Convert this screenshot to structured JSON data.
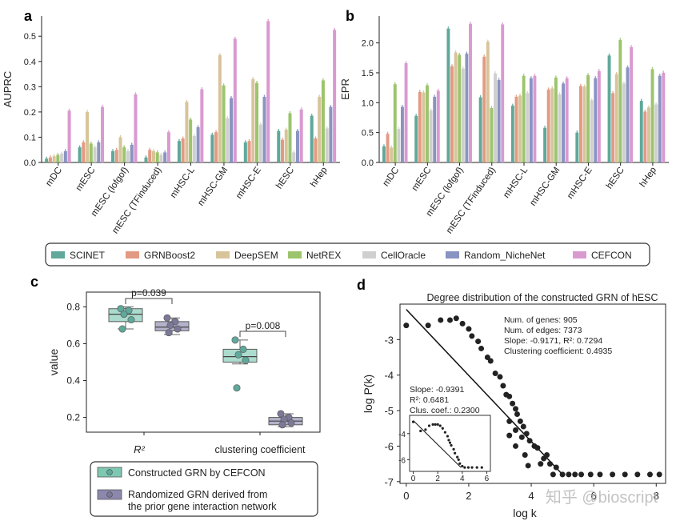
{
  "colors": {
    "SCINET": "#5fa89a",
    "GRNBoost2": "#e39a83",
    "DeepSEM": "#d8c49a",
    "NetREX": "#9cc46c",
    "CellOracle": "#cfcfcf",
    "Random_NicheNet": "#8a94c2",
    "CEFCON": "#d99ad0",
    "constructed": "#7ec8b2",
    "randomized": "#8c88ad",
    "point_constructed": "#5fa89a",
    "point_randomized": "#7c7898",
    "axis": "#222222"
  },
  "watermark": "知乎 @bioscript",
  "legend_ab": {
    "items": [
      "SCINET",
      "GRNBoost2",
      "DeepSEM",
      "NetREX",
      "CellOracle",
      "Random_NicheNet",
      "CEFCON"
    ]
  },
  "chart_data": [
    {
      "panel": "a",
      "type": "bar",
      "ylabel": "AUPRC",
      "ylim": [
        0,
        0.58
      ],
      "yticks": [
        "0.0",
        "0.1",
        "0.2",
        "0.3",
        "0.4",
        "0.5"
      ],
      "categories": [
        "mDC",
        "mESC",
        "mESC (lofgof)",
        "mESC (TFinduced)",
        "mHSC-L",
        "mHSC-GM",
        "mHSC-E",
        "hESC",
        "hHep"
      ],
      "series": [
        {
          "name": "SCINET",
          "values": [
            0.015,
            0.06,
            0.045,
            0.02,
            0.085,
            0.11,
            0.08,
            0.125,
            0.185
          ]
        },
        {
          "name": "GRNBoost2",
          "values": [
            0.02,
            0.08,
            0.05,
            0.05,
            0.095,
            0.12,
            0.085,
            0.09,
            0.095
          ]
        },
        {
          "name": "DeepSEM",
          "values": [
            0.025,
            0.2,
            0.1,
            0.045,
            0.24,
            0.425,
            0.33,
            0.13,
            0.26
          ]
        },
        {
          "name": "NetREX",
          "values": [
            0.03,
            0.075,
            0.06,
            0.04,
            0.17,
            0.305,
            0.315,
            0.195,
            0.325
          ]
        },
        {
          "name": "CellOracle",
          "values": [
            0.035,
            0.06,
            0.045,
            0.03,
            0.105,
            0.175,
            0.15,
            0.04,
            0.135
          ]
        },
        {
          "name": "Random_NicheNet",
          "values": [
            0.045,
            0.08,
            0.07,
            0.04,
            0.14,
            0.255,
            0.26,
            0.125,
            0.22
          ]
        },
        {
          "name": "CEFCON",
          "values": [
            0.205,
            0.22,
            0.27,
            0.12,
            0.29,
            0.49,
            0.56,
            0.21,
            0.525
          ]
        }
      ]
    },
    {
      "panel": "b",
      "type": "bar",
      "ylabel": "EPR",
      "ylim": [
        0,
        2.45
      ],
      "yticks": [
        "0.0",
        "0.5",
        "1.0",
        "1.5",
        "2.0"
      ],
      "categories": [
        "mDC",
        "mESC",
        "mESC (lofgof)",
        "mESC (TFinduced)",
        "mHSC-L",
        "mHSC-GM",
        "mHSC-E",
        "hESC",
        "hHep"
      ],
      "series": [
        {
          "name": "SCINET",
          "values": [
            0.27,
            0.78,
            2.24,
            1.09,
            0.95,
            0.58,
            0.5,
            1.79,
            1.03
          ]
        },
        {
          "name": "GRNBoost2",
          "values": [
            0.48,
            1.18,
            1.61,
            1.77,
            1.1,
            1.22,
            1.28,
            1.16,
            0.85
          ]
        },
        {
          "name": "DeepSEM",
          "values": [
            0.25,
            1.17,
            1.84,
            2.02,
            1.12,
            1.24,
            1.27,
            1.48,
            0.92
          ]
        },
        {
          "name": "NetREX",
          "values": [
            1.31,
            1.29,
            1.8,
            0.91,
            1.45,
            1.42,
            1.46,
            2.05,
            1.56
          ]
        },
        {
          "name": "CellOracle",
          "values": [
            0.56,
            0.87,
            1.57,
            1.49,
            1.16,
            1.14,
            1.04,
            1.32,
            0.97
          ]
        },
        {
          "name": "Random_NicheNet",
          "values": [
            0.93,
            1.1,
            1.82,
            1.38,
            1.41,
            1.32,
            1.41,
            1.59,
            1.45
          ]
        },
        {
          "name": "CEFCON",
          "values": [
            1.66,
            1.2,
            2.32,
            2.31,
            1.45,
            1.41,
            1.53,
            1.93,
            1.5
          ]
        }
      ]
    },
    {
      "panel": "c",
      "type": "box",
      "ylabel": "value",
      "ylim": [
        0.12,
        0.88
      ],
      "yticks": [
        "0.2",
        "0.4",
        "0.6",
        "0.8"
      ],
      "categories": [
        "R²",
        "clustering coefficient"
      ],
      "groups": [
        {
          "category": "R²",
          "series": "Constructed GRN by CEFCON",
          "q1": 0.72,
          "median": 0.76,
          "q3": 0.79,
          "whisker_low": 0.68,
          "whisker_high": 0.8,
          "points": [
            0.79,
            0.78,
            0.76,
            0.73,
            0.68
          ]
        },
        {
          "category": "R²",
          "series": "Randomized GRN",
          "q1": 0.67,
          "median": 0.69,
          "q3": 0.72,
          "whisker_low": 0.65,
          "whisker_high": 0.74,
          "points": [
            0.74,
            0.72,
            0.7,
            0.68,
            0.66
          ]
        },
        {
          "category": "clustering coefficient",
          "series": "Constructed GRN by CEFCON",
          "q1": 0.5,
          "median": 0.53,
          "q3": 0.57,
          "whisker_low": 0.49,
          "whisker_high": 0.62,
          "points": [
            0.62,
            0.57,
            0.54,
            0.51,
            0.36
          ]
        },
        {
          "category": "clustering coefficient",
          "series": "Randomized GRN",
          "q1": 0.16,
          "median": 0.18,
          "q3": 0.2,
          "whisker_low": 0.15,
          "whisker_high": 0.22,
          "points": [
            0.22,
            0.2,
            0.19,
            0.17,
            0.16
          ]
        }
      ],
      "annotations": [
        "p=0.039",
        "p=0.008"
      ],
      "legend": [
        "Constructed GRN by CEFCON",
        "Randomized GRN derived from the prior gene interaction network"
      ]
    },
    {
      "panel": "d",
      "type": "scatter",
      "title": "Degree distribution of the constructed GRN of hESC",
      "xlabel": "log k",
      "ylabel": "log P(k)",
      "xlim": [
        -0.2,
        8.3
      ],
      "ylim": [
        -7.05,
        -2.0
      ],
      "xticks": [
        "0",
        "2",
        "4",
        "6",
        "8"
      ],
      "yticks": [
        "-3",
        "-4",
        "-5",
        "-6",
        "-7"
      ],
      "stats": [
        "Num. of genes: 905",
        "Num. of edges: 7373",
        "Slope: -0.9171, R²: 0.7294",
        "Clustering coefficient: 0.4935"
      ],
      "fit_line": {
        "x": [
          0,
          5.0
        ],
        "y": [
          -2.15,
          -6.8
        ]
      },
      "points": [
        [
          0,
          -2.6
        ],
        [
          0.7,
          -2.6
        ],
        [
          1.1,
          -2.45
        ],
        [
          1.4,
          -2.45
        ],
        [
          1.6,
          -2.4
        ],
        [
          1.8,
          -2.55
        ],
        [
          2.0,
          -2.7
        ],
        [
          2.1,
          -2.9
        ],
        [
          2.3,
          -3.05
        ],
        [
          2.4,
          -3.25
        ],
        [
          2.6,
          -3.5
        ],
        [
          2.7,
          -3.6
        ],
        [
          2.85,
          -3.95
        ],
        [
          3.0,
          -4.05
        ],
        [
          3.1,
          -4.3
        ],
        [
          3.2,
          -4.55
        ],
        [
          3.3,
          -4.6
        ],
        [
          3.4,
          -4.8
        ],
        [
          3.5,
          -4.95
        ],
        [
          3.55,
          -5.1
        ],
        [
          3.65,
          -5.3
        ],
        [
          3.75,
          -5.45
        ],
        [
          3.85,
          -5.65
        ],
        [
          3.95,
          -5.85
        ],
        [
          4.1,
          -6.0
        ],
        [
          4.2,
          -6.05
        ],
        [
          4.4,
          -6.35
        ],
        [
          4.5,
          -6.25
        ],
        [
          4.6,
          -6.5
        ],
        [
          4.8,
          -6.6
        ],
        [
          5.0,
          -6.8
        ],
        [
          5.2,
          -6.8
        ],
        [
          5.4,
          -6.8
        ],
        [
          5.6,
          -6.8
        ],
        [
          5.9,
          -6.8
        ],
        [
          6.2,
          -6.8
        ],
        [
          6.6,
          -6.8
        ],
        [
          7.0,
          -6.8
        ],
        [
          7.4,
          -6.8
        ],
        [
          7.8,
          -6.8
        ],
        [
          8.1,
          -6.8
        ],
        [
          3.3,
          -5.3
        ],
        [
          3.5,
          -5.55
        ],
        [
          3.7,
          -5.75
        ],
        [
          3.3,
          -5.7
        ],
        [
          3.5,
          -6.0
        ],
        [
          3.8,
          -6.25
        ],
        [
          3.9,
          -6.55
        ],
        [
          4.3,
          -6.5
        ],
        [
          4.7,
          -6.8
        ]
      ],
      "inset": {
        "xticks": [
          "0",
          "2",
          "4",
          "6"
        ],
        "yticks": [
          "-4",
          "-6"
        ],
        "stats": [
          "Slope: -0.9391",
          "R²: 0.6481",
          "Clus. coef.: 0.2300"
        ],
        "xlim": [
          -0.3,
          6.3
        ],
        "ylim": [
          -6.9,
          -2.6
        ],
        "fit_line": {
          "x": [
            0,
            3.9
          ],
          "y": [
            -3.0,
            -6.6
          ]
        },
        "points": [
          [
            0,
            -3.1
          ],
          [
            0.6,
            -3.8
          ],
          [
            1.0,
            -3.7
          ],
          [
            1.3,
            -3.4
          ],
          [
            1.6,
            -3.3
          ],
          [
            1.8,
            -3.3
          ],
          [
            2.0,
            -3.3
          ],
          [
            2.2,
            -3.4
          ],
          [
            2.4,
            -3.6
          ],
          [
            2.6,
            -3.9
          ],
          [
            2.8,
            -4.2
          ],
          [
            2.9,
            -4.5
          ],
          [
            3.0,
            -4.7
          ],
          [
            3.1,
            -4.9
          ],
          [
            3.3,
            -5.2
          ],
          [
            3.4,
            -5.5
          ],
          [
            3.6,
            -5.8
          ],
          [
            3.7,
            -6.0
          ],
          [
            3.8,
            -6.3
          ],
          [
            4.0,
            -6.5
          ],
          [
            4.2,
            -6.6
          ],
          [
            4.5,
            -6.6
          ],
          [
            4.8,
            -6.6
          ],
          [
            5.2,
            -6.6
          ],
          [
            5.6,
            -6.6
          ]
        ]
      }
    }
  ]
}
